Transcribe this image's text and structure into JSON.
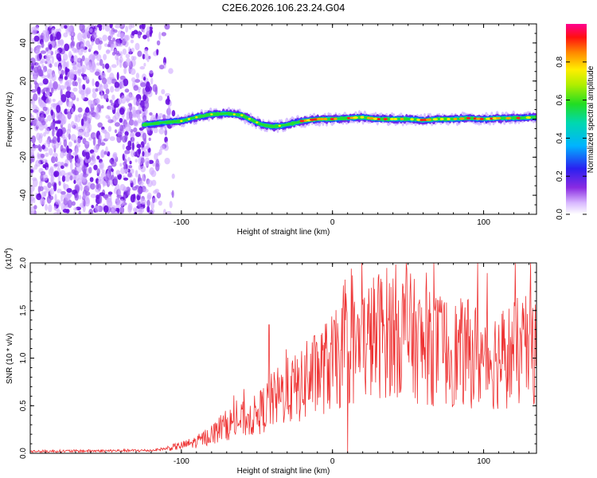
{
  "title": "C2E6.2026.106.23.24.G04",
  "chart_data": [
    {
      "type": "heatmap",
      "name": "spectrogram",
      "xlabel": "Height of straight line (km)",
      "ylabel": "Frequency (Hz)",
      "xlim": [
        -200,
        135
      ],
      "ylim": [
        -50,
        50
      ],
      "xticks": [
        -100,
        0,
        100
      ],
      "yticks": [
        40,
        20,
        0,
        -20,
        -40
      ],
      "noise_region_xmax": -105,
      "signal_start_x": -125,
      "ridge": {
        "x": [
          -125,
          -115,
          -100,
          -90,
          -80,
          -70,
          -60,
          -52,
          -48,
          -40,
          -30,
          -20,
          -10,
          0,
          10,
          20,
          30,
          40,
          50,
          60,
          70,
          80,
          90,
          100,
          110,
          120,
          135
        ],
        "y": [
          -3,
          -2,
          -1,
          1,
          2.5,
          3,
          2,
          -1,
          -2.5,
          -4,
          -3,
          -1,
          0,
          0,
          0.5,
          1,
          0,
          0,
          0,
          -0.5,
          0,
          0,
          0.5,
          0,
          0.5,
          0.5,
          1
        ]
      },
      "colorbar": {
        "label": "Normalized spectral amplitude",
        "range": [
          0,
          1
        ],
        "ticks": [
          "0.0",
          "0.2",
          "0.4",
          "0.6",
          "0.8"
        ]
      }
    },
    {
      "type": "line",
      "name": "snr",
      "xlabel": "Height of straight line (km)",
      "ylabel": "SNR (10 * v/v)",
      "scale_label": "(x10",
      "scale_exp": "4",
      "xlim": [
        -200,
        135
      ],
      "ylim": [
        0,
        2.0
      ],
      "xticks": [
        -100,
        0,
        100
      ],
      "yticks": [
        "0.0",
        "0.5",
        "1.0",
        "1.5",
        "2.0"
      ],
      "color": "#ee3333",
      "envelope": {
        "x": [
          -200,
          -120,
          -110,
          -100,
          -90,
          -80,
          -70,
          -60,
          -50,
          -40,
          -30,
          -20,
          -10,
          0,
          10,
          20,
          30,
          40,
          50,
          60,
          70,
          80,
          90,
          100,
          110,
          120,
          135
        ],
        "y": [
          0.02,
          0.03,
          0.05,
          0.08,
          0.12,
          0.2,
          0.3,
          0.35,
          0.4,
          0.55,
          0.65,
          0.7,
          0.85,
          0.95,
          1.05,
          1.15,
          1.25,
          1.3,
          1.25,
          1.1,
          1.1,
          1.05,
          1.05,
          1.0,
          1.0,
          1.05,
          1.1
        ]
      },
      "spikes": [
        {
          "x": -42,
          "y": 1.35
        },
        {
          "x": -17,
          "y": 1.18
        },
        {
          "x": 9,
          "y": 1.68
        },
        {
          "x": 10,
          "y": 0.0
        },
        {
          "x": 67,
          "y": 2.0
        },
        {
          "x": 96,
          "y": 2.0
        },
        {
          "x": 121,
          "y": 2.0
        },
        {
          "x": 131,
          "y": 2.0
        }
      ]
    }
  ]
}
